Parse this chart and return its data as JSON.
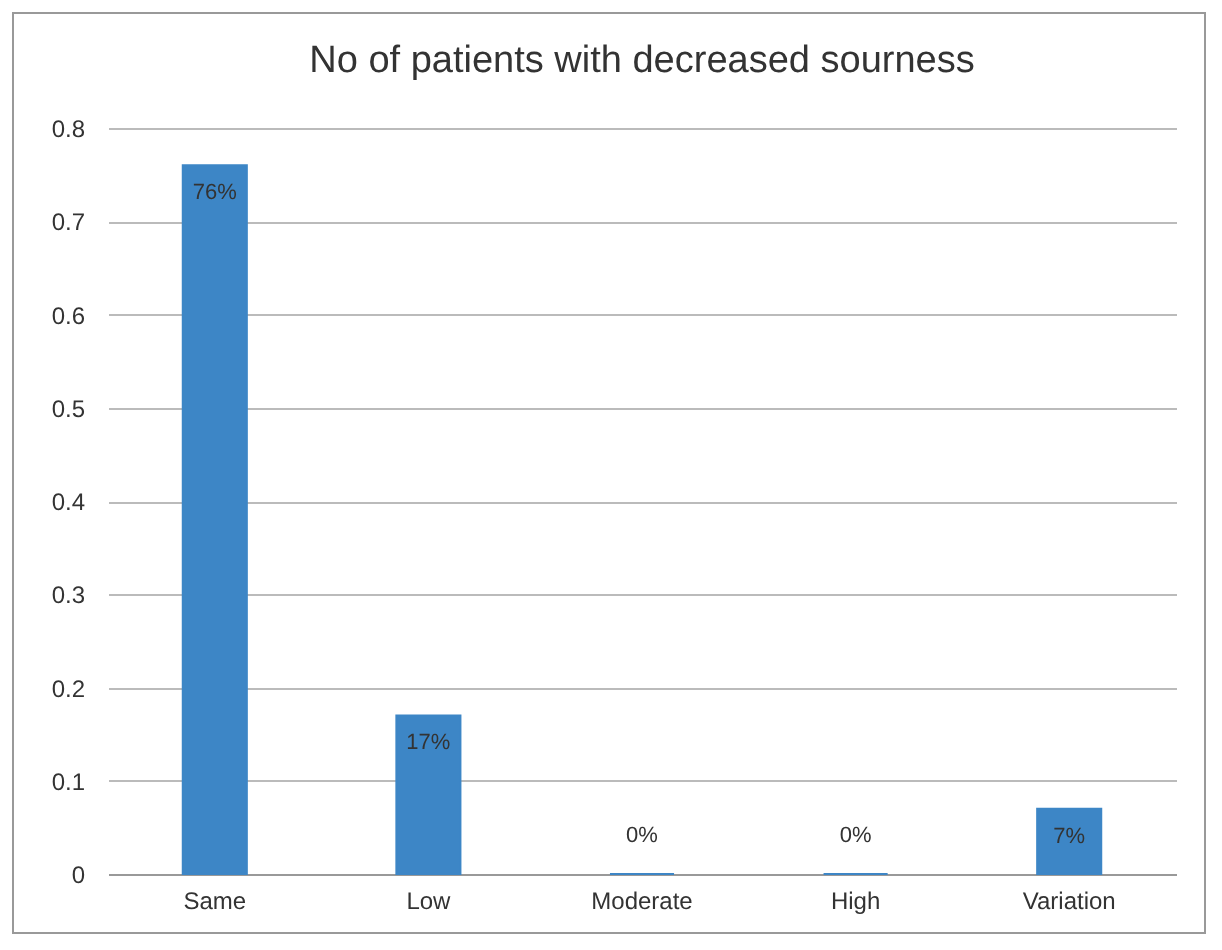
{
  "chart_data": {
    "type": "bar",
    "title": "No of patients with decreased sourness",
    "categories": [
      "Same",
      "Low",
      "Moderate",
      "High",
      "Variation"
    ],
    "values": [
      0.76,
      0.17,
      0,
      0,
      0.07
    ],
    "value_labels": [
      "76%",
      "17%",
      "0%",
      "0%",
      "7%"
    ],
    "color": "#3d86c6",
    "ylim": [
      0,
      0.8
    ],
    "yticks": [
      0,
      0.1,
      0.2,
      0.3,
      0.4,
      0.5,
      0.6,
      0.7,
      0.8
    ],
    "grid": "y"
  }
}
